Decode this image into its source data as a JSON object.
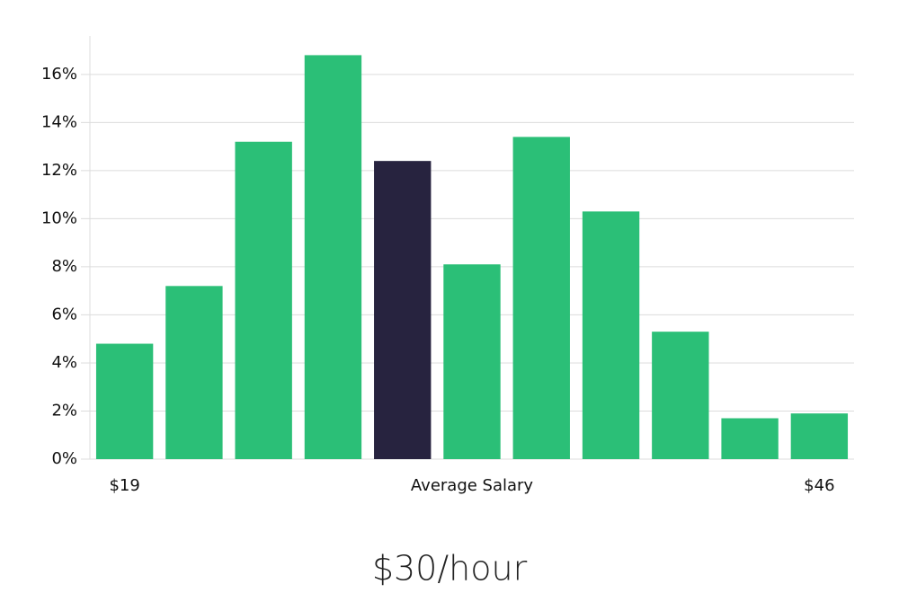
{
  "chart_data": {
    "type": "bar",
    "categories": [
      "$19",
      null,
      null,
      null,
      null,
      "Average Salary",
      null,
      null,
      null,
      null,
      "$46"
    ],
    "values": [
      4.8,
      7.2,
      13.2,
      16.8,
      12.4,
      8.1,
      13.4,
      10.3,
      5.3,
      1.7,
      1.9
    ],
    "colors": [
      "#2bbf77",
      "#2bbf77",
      "#2bbf77",
      "#2bbf77",
      "#27233f",
      "#2bbf77",
      "#2bbf77",
      "#2bbf77",
      "#2bbf77",
      "#2bbf77",
      "#2bbf77"
    ],
    "ylim": [
      0,
      17.6
    ],
    "yticks": [
      {
        "value": 0,
        "label": "0%"
      },
      {
        "value": 2,
        "label": "2%"
      },
      {
        "value": 4,
        "label": "4%"
      },
      {
        "value": 6,
        "label": "6%"
      },
      {
        "value": 8,
        "label": "8%"
      },
      {
        "value": 10,
        "label": "10%"
      },
      {
        "value": 12,
        "label": "12%"
      },
      {
        "value": 14,
        "label": "14%"
      },
      {
        "value": 16,
        "label": "16%"
      }
    ],
    "grid": true,
    "caption": "$30/hour"
  }
}
